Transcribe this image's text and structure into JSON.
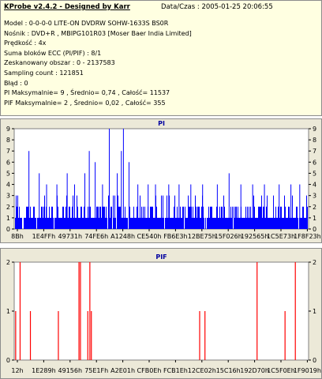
{
  "header": {
    "title": "KProbe v2.4.2 - Designed by Karr",
    "date_label": "Data/Czas : 2005-01-25 20:06:55"
  },
  "info": {
    "rows": [
      "Model : 0-0-0-0 LITE-ON DVDRW SOHW-1633S BS0R",
      "Nośnik : DVD+R , MBIPG101R03 [Moser Baer India Limited]",
      "Prędkość : 4x",
      "Suma bloków ECC (PI/PIF) : 8/1",
      "Zeskanowany obszar : 0 - 2137583",
      "Sampling count : 121851",
      "Błąd : 0",
      "PI Maksymalnie= 9 , Średnio= 0,74 , Całość= 11537",
      "PIF Maksymalnie= 2 , Średnio= 0,02 , Całość= 355"
    ]
  },
  "colors": {
    "pi_bar": "#0000ff",
    "pif_bar": "#ff0000",
    "chart_title": "#0000a0"
  },
  "chart_data": [
    {
      "type": "bar",
      "title": "PI",
      "ylim": [
        0,
        9
      ],
      "yticks": [
        0,
        1,
        2,
        3,
        4,
        5,
        6,
        7,
        8,
        9
      ],
      "xticks": [
        "8Bh",
        "1E4FFh",
        "49731h",
        "74FE6h",
        "A1248h",
        "CE540h",
        "FB6E3h",
        "12BE75h",
        "15F026h",
        "192565h",
        "1C5E73h",
        "1F8F23h"
      ],
      "grid": false,
      "summary": {
        "max": 9,
        "average": 0.74,
        "total": 11537
      },
      "spikes": [
        {
          "x": 0.05,
          "value": 7
        },
        {
          "x": 0.085,
          "value": 5
        },
        {
          "x": 0.11,
          "value": 4
        },
        {
          "x": 0.145,
          "value": 4
        },
        {
          "x": 0.18,
          "value": 5
        },
        {
          "x": 0.205,
          "value": 4
        },
        {
          "x": 0.24,
          "value": 5
        },
        {
          "x": 0.255,
          "value": 7
        },
        {
          "x": 0.275,
          "value": 6
        },
        {
          "x": 0.3,
          "value": 4
        },
        {
          "x": 0.323,
          "value": 9
        },
        {
          "x": 0.35,
          "value": 5
        },
        {
          "x": 0.364,
          "value": 7
        },
        {
          "x": 0.371,
          "value": 9
        },
        {
          "x": 0.39,
          "value": 6
        },
        {
          "x": 0.42,
          "value": 4
        },
        {
          "x": 0.455,
          "value": 4
        },
        {
          "x": 0.48,
          "value": 4
        },
        {
          "x": 0.525,
          "value": 4
        },
        {
          "x": 0.56,
          "value": 4
        },
        {
          "x": 0.6,
          "value": 4
        },
        {
          "x": 0.64,
          "value": 4
        },
        {
          "x": 0.69,
          "value": 4
        },
        {
          "x": 0.73,
          "value": 5
        },
        {
          "x": 0.77,
          "value": 4
        },
        {
          "x": 0.81,
          "value": 4
        },
        {
          "x": 0.85,
          "value": 4
        },
        {
          "x": 0.9,
          "value": 4
        },
        {
          "x": 0.94,
          "value": 4
        },
        {
          "x": 0.97,
          "value": 4
        }
      ]
    },
    {
      "type": "bar",
      "title": "PIF",
      "ylim": [
        0,
        2
      ],
      "yticks": [
        0,
        1,
        2
      ],
      "xticks": [
        "12h",
        "1E289h",
        "49156h",
        "75E1Fh",
        "A2E01h",
        "CFB0Eh",
        "FCB1Eh",
        "12CE02h",
        "15C16h",
        "192D70h",
        "1C5F0Eh",
        "1F9019h"
      ],
      "grid": false,
      "summary": {
        "max": 2,
        "average": 0.02,
        "total": 355
      },
      "spikes": [
        {
          "x": 0.005,
          "value": 1
        },
        {
          "x": 0.02,
          "value": 2
        },
        {
          "x": 0.055,
          "value": 1
        },
        {
          "x": 0.15,
          "value": 1
        },
        {
          "x": 0.22,
          "value": 2
        },
        {
          "x": 0.225,
          "value": 2
        },
        {
          "x": 0.25,
          "value": 1
        },
        {
          "x": 0.257,
          "value": 2
        },
        {
          "x": 0.262,
          "value": 1
        },
        {
          "x": 0.63,
          "value": 1
        },
        {
          "x": 0.648,
          "value": 1
        },
        {
          "x": 0.825,
          "value": 2
        },
        {
          "x": 0.92,
          "value": 1
        },
        {
          "x": 0.955,
          "value": 2
        }
      ]
    }
  ]
}
